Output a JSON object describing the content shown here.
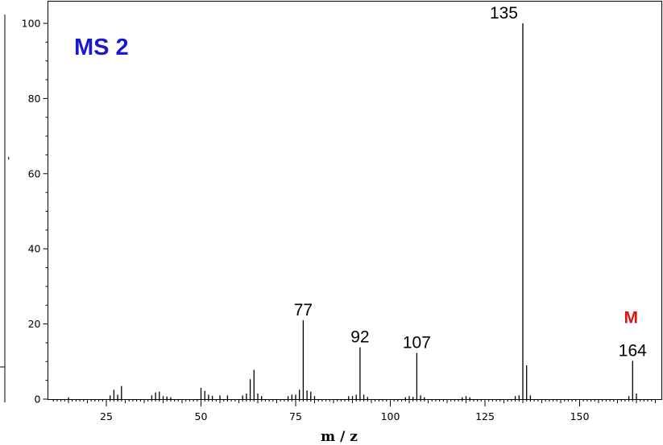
{
  "chart_data": {
    "type": "bar",
    "title": "MS 2",
    "xlabel": "m / z",
    "ylabel": "",
    "xlim": [
      0,
      170
    ],
    "ylim": [
      0,
      100
    ],
    "x_ticks": [
      25,
      50,
      75,
      100,
      125,
      150
    ],
    "y_ticks": [
      0,
      20,
      40,
      60,
      80,
      100
    ],
    "grid": false,
    "title_color": "#1a1acc",
    "marker_color": "#e01010",
    "series": [
      {
        "x": [
          15,
          26,
          27,
          28,
          29,
          37,
          38,
          39,
          40,
          41,
          42,
          50,
          51,
          52,
          53,
          55,
          57,
          61,
          62,
          63,
          64,
          65,
          66,
          73,
          74,
          75,
          76,
          77,
          78,
          79,
          80,
          89,
          90,
          91,
          92,
          93,
          94,
          104,
          105,
          106,
          107,
          108,
          109,
          119,
          120,
          121,
          133,
          134,
          135,
          136,
          137,
          163,
          164,
          165
        ],
        "values": [
          0.5,
          1.0,
          2.5,
          1.2,
          3.5,
          1.0,
          1.8,
          2.0,
          0.8,
          0.7,
          0.5,
          3.0,
          2.2,
          1.2,
          0.9,
          1.0,
          1.0,
          1.0,
          1.5,
          5.3,
          7.8,
          1.5,
          0.8,
          0.8,
          1.2,
          1.2,
          2.5,
          21.0,
          2.3,
          2.0,
          0.8,
          0.8,
          0.8,
          1.2,
          13.8,
          1.2,
          0.6,
          0.5,
          0.8,
          0.6,
          12.3,
          1.0,
          0.5,
          0.5,
          0.8,
          0.5,
          0.8,
          1.0,
          100,
          9.0,
          1.0,
          0.8,
          10.2,
          1.5
        ]
      }
    ],
    "annotations": [
      {
        "x": 77,
        "text": "77"
      },
      {
        "x": 92,
        "text": "92"
      },
      {
        "x": 107,
        "text": "107"
      },
      {
        "x": 135,
        "text": "135"
      },
      {
        "x": 164,
        "text": "164"
      }
    ],
    "marker": {
      "x": 164,
      "text": "M"
    }
  }
}
